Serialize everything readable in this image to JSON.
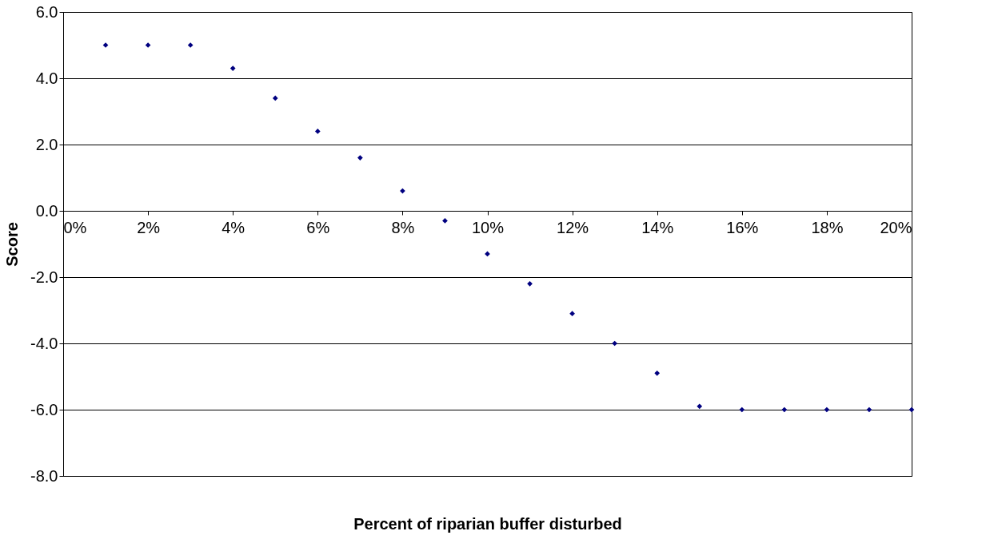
{
  "chart_data": {
    "type": "scatter",
    "xlabel": "Percent of riparian buffer disturbed",
    "ylabel": "Score",
    "x": [
      1,
      2,
      3,
      4,
      5,
      6,
      7,
      8,
      9,
      10,
      11,
      12,
      13,
      14,
      15,
      16,
      17,
      18,
      19,
      20
    ],
    "series": [
      {
        "color": "#000080",
        "values": [
          5.0,
          5.0,
          5.0,
          4.3,
          3.4,
          2.4,
          1.6,
          0.6,
          -0.3,
          -1.3,
          -2.2,
          -3.1,
          -4.0,
          -4.9,
          -5.9,
          -6.0,
          -6.0,
          -6.0,
          -6.0,
          -6.0
        ]
      }
    ],
    "xlim": [
      0,
      20
    ],
    "xticks": [
      {
        "value": 0,
        "label": "0%"
      },
      {
        "value": 2,
        "label": "2%"
      },
      {
        "value": 4,
        "label": "4%"
      },
      {
        "value": 6,
        "label": "6%"
      },
      {
        "value": 8,
        "label": "8%"
      },
      {
        "value": 10,
        "label": "10%"
      },
      {
        "value": 12,
        "label": "12%"
      },
      {
        "value": 14,
        "label": "14%"
      },
      {
        "value": 16,
        "label": "16%"
      },
      {
        "value": 18,
        "label": "18%"
      },
      {
        "value": 20,
        "label": "20%"
      }
    ],
    "ylim": [
      -8,
      6
    ],
    "yticks": [
      {
        "value": -8,
        "label": "-8.0"
      },
      {
        "value": -6,
        "label": "-6.0"
      },
      {
        "value": -4,
        "label": "-4.0"
      },
      {
        "value": -2,
        "label": "-2.0"
      },
      {
        "value": 0,
        "label": "0.0"
      },
      {
        "value": 2,
        "label": "2.0"
      },
      {
        "value": 4,
        "label": "4.0"
      },
      {
        "value": 6,
        "label": "6.0"
      }
    ],
    "grid": "y",
    "marker": "diamond",
    "legend": false
  }
}
